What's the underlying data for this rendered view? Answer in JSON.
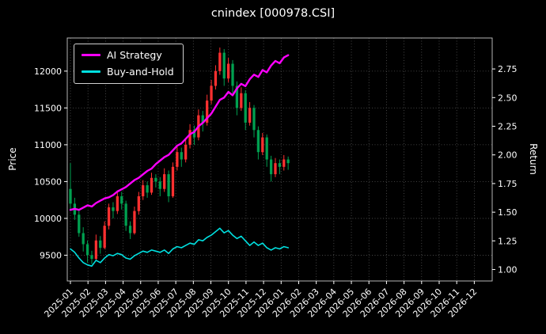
{
  "figure": {
    "bg": "#000000",
    "fg": "#ffffff"
  },
  "chart_data": {
    "type": "candlestick+line",
    "title": "cnindex [000978.CSI]",
    "ylabel_left": "Price",
    "ylabel_right": "Return",
    "legend_position": "top-left",
    "grid": true,
    "x_tick_labels": [
      "2025-01",
      "2025-02",
      "2025-03",
      "2025-04",
      "2025-05",
      "2025-06",
      "2025-07",
      "2025-08",
      "2025-09",
      "2025-10",
      "2025-11",
      "2025-12",
      "2026-01",
      "2026-02",
      "2026-03",
      "2026-04",
      "2026-05",
      "2026-06",
      "2026-07",
      "2026-08",
      "2026-09",
      "2026-10",
      "2026-11",
      "2026-12"
    ],
    "price_ticks": [
      9500,
      10000,
      10500,
      11000,
      11500,
      12000
    ],
    "return_ticks": [
      "1.00",
      "1.25",
      "1.50",
      "1.75",
      "2.00",
      "2.25",
      "2.50",
      "2.75"
    ],
    "ylim_price": [
      9150,
      12450
    ],
    "ylim_return": [
      0.9,
      3.02
    ],
    "x_months_span": 24.2,
    "data_month_start": 0,
    "data_month_end": 12.4,
    "colors": {
      "up": "#ff3030",
      "down": "#00a050",
      "grid": "#555555",
      "spine": "#c8c8c8",
      "tick": "#ffffff"
    },
    "candles_ohlc": [
      [
        10400,
        10750,
        10100,
        10200
      ],
      [
        10200,
        10280,
        9980,
        10050
      ],
      [
        10050,
        10120,
        9750,
        9800
      ],
      [
        9800,
        9880,
        9550,
        9650
      ],
      [
        9650,
        9700,
        9400,
        9500
      ],
      [
        9500,
        9560,
        9380,
        9450
      ],
      [
        9450,
        9780,
        9420,
        9700
      ],
      [
        9700,
        9760,
        9520,
        9600
      ],
      [
        9600,
        9960,
        9580,
        9900
      ],
      [
        9900,
        10200,
        9850,
        10150
      ],
      [
        10150,
        10220,
        10000,
        10100
      ],
      [
        10100,
        10380,
        10060,
        10300
      ],
      [
        10300,
        10360,
        10120,
        10200
      ],
      [
        10200,
        10240,
        9830,
        9900
      ],
      [
        9900,
        9960,
        9720,
        9800
      ],
      [
        9800,
        10160,
        9780,
        10100
      ],
      [
        10100,
        10360,
        10050,
        10300
      ],
      [
        10300,
        10520,
        10250,
        10450
      ],
      [
        10450,
        10500,
        10280,
        10350
      ],
      [
        10350,
        10620,
        10320,
        10550
      ],
      [
        10550,
        10600,
        10420,
        10500
      ],
      [
        10500,
        10560,
        10300,
        10400
      ],
      [
        10400,
        10680,
        10360,
        10600
      ],
      [
        10600,
        10650,
        10220,
        10300
      ],
      [
        10300,
        10760,
        10280,
        10700
      ],
      [
        10700,
        10980,
        10650,
        10900
      ],
      [
        10900,
        10960,
        10700,
        10800
      ],
      [
        10800,
        11080,
        10760,
        11000
      ],
      [
        11000,
        11280,
        10950,
        11200
      ],
      [
        11200,
        11260,
        11000,
        11100
      ],
      [
        11100,
        11480,
        11060,
        11400
      ],
      [
        11400,
        11460,
        11180,
        11300
      ],
      [
        11300,
        11680,
        11260,
        11600
      ],
      [
        11600,
        11880,
        11550,
        11800
      ],
      [
        11800,
        12080,
        11750,
        12000
      ],
      [
        12000,
        12320,
        11950,
        12250
      ],
      [
        12250,
        12300,
        11800,
        11900
      ],
      [
        11900,
        12180,
        11850,
        12100
      ],
      [
        12100,
        12150,
        11700,
        11800
      ],
      [
        11800,
        11860,
        11400,
        11500
      ],
      [
        11500,
        11780,
        11460,
        11700
      ],
      [
        11700,
        11740,
        11200,
        11300
      ],
      [
        11300,
        11580,
        11260,
        11500
      ],
      [
        11500,
        11540,
        11100,
        11200
      ],
      [
        11200,
        11250,
        10800,
        10900
      ],
      [
        10900,
        11160,
        10860,
        11100
      ],
      [
        11100,
        11140,
        10700,
        10800
      ],
      [
        10800,
        10850,
        10500,
        10600
      ],
      [
        10600,
        10820,
        10560,
        10750
      ],
      [
        10750,
        10800,
        10600,
        10700
      ],
      [
        10700,
        10860,
        10650,
        10800
      ],
      [
        10800,
        10840,
        10660,
        10750
      ]
    ],
    "series": [
      {
        "name": "AI Strategy",
        "color": "#ff00ff",
        "axis": "return",
        "width": 2.4,
        "values": [
          1.52,
          1.53,
          1.52,
          1.54,
          1.56,
          1.55,
          1.58,
          1.6,
          1.62,
          1.63,
          1.65,
          1.68,
          1.7,
          1.72,
          1.75,
          1.78,
          1.8,
          1.83,
          1.86,
          1.88,
          1.92,
          1.95,
          1.98,
          2.0,
          2.04,
          2.08,
          2.1,
          2.14,
          2.18,
          2.2,
          2.25,
          2.28,
          2.32,
          2.36,
          2.42,
          2.48,
          2.5,
          2.55,
          2.52,
          2.58,
          2.62,
          2.6,
          2.66,
          2.7,
          2.68,
          2.74,
          2.72,
          2.78,
          2.82,
          2.8,
          2.85,
          2.87
        ]
      },
      {
        "name": "Buy-and-Hold",
        "color": "#00e0e0",
        "axis": "return",
        "width": 1.6,
        "values": [
          1.18,
          1.15,
          1.1,
          1.06,
          1.04,
          1.03,
          1.08,
          1.06,
          1.1,
          1.13,
          1.12,
          1.14,
          1.13,
          1.1,
          1.09,
          1.12,
          1.14,
          1.16,
          1.15,
          1.17,
          1.16,
          1.15,
          1.17,
          1.14,
          1.18,
          1.2,
          1.19,
          1.21,
          1.23,
          1.22,
          1.26,
          1.25,
          1.28,
          1.3,
          1.33,
          1.36,
          1.32,
          1.34,
          1.3,
          1.27,
          1.29,
          1.25,
          1.21,
          1.24,
          1.21,
          1.23,
          1.19,
          1.17,
          1.19,
          1.18,
          1.2,
          1.19
        ]
      }
    ]
  }
}
